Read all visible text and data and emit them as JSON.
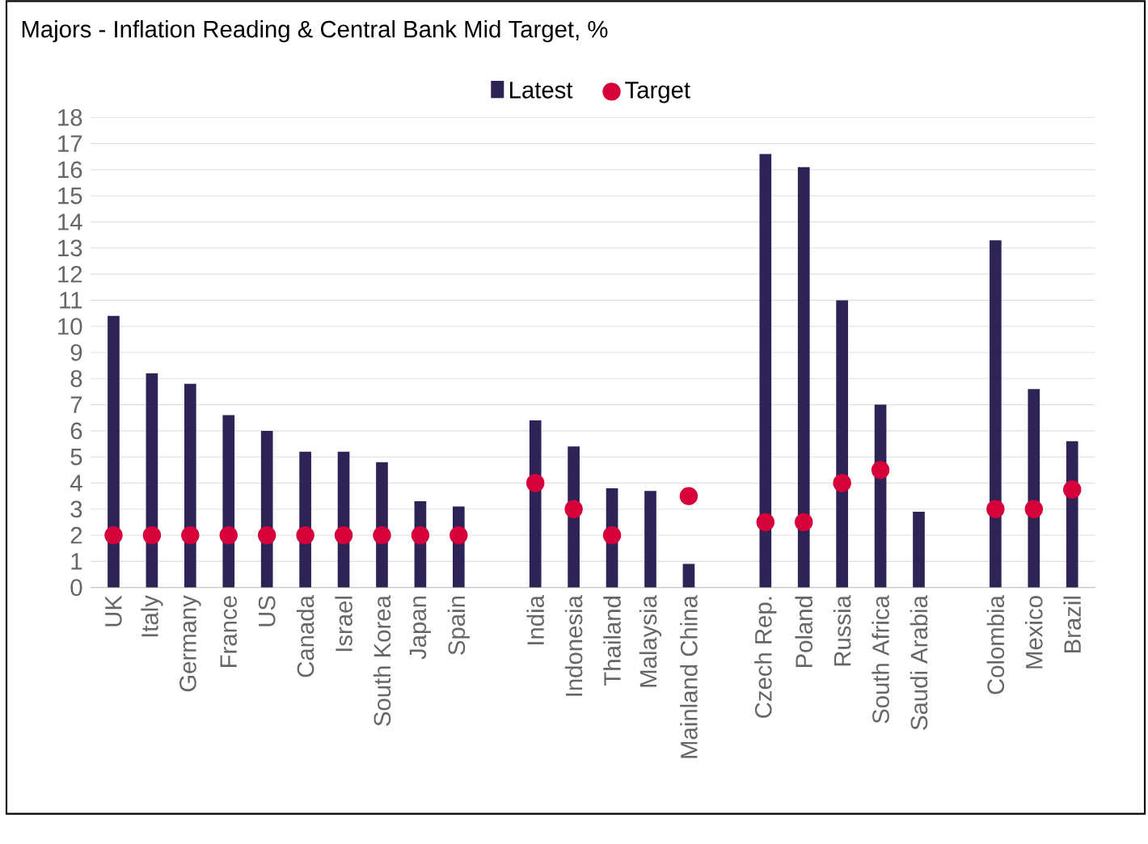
{
  "chart_data": {
    "type": "bar",
    "title": "Majors - Inflation Reading & Central Bank Mid Target, %",
    "categories": [
      "UK",
      "Italy",
      "Germany",
      "France",
      "US",
      "Canada",
      "Israel",
      "South Korea",
      "Japan",
      "Spain",
      null,
      "India",
      "Indonesia",
      "Thailand",
      "Malaysia",
      "Mainland China",
      null,
      "Czech Rep.",
      "Poland",
      "Russia",
      "South Africa",
      "Saudi Arabia",
      null,
      "Colombia",
      "Mexico",
      "Brazil"
    ],
    "series": [
      {
        "name": "Latest",
        "color": "#2e2355",
        "values": [
          10.4,
          8.2,
          7.8,
          6.6,
          6.0,
          5.2,
          5.2,
          4.8,
          3.3,
          3.1,
          null,
          6.4,
          5.4,
          3.8,
          3.7,
          0.9,
          null,
          16.6,
          16.1,
          11.0,
          7.0,
          2.9,
          null,
          13.3,
          7.6,
          5.6
        ]
      },
      {
        "name": "Target",
        "type": "scatter",
        "color": "#d6003a",
        "values": [
          2,
          2,
          2,
          2,
          2,
          2,
          2,
          2,
          2,
          2,
          null,
          4,
          3,
          2,
          null,
          3.5,
          null,
          2.5,
          2.5,
          4,
          4.5,
          null,
          null,
          3,
          3,
          3.75
        ]
      }
    ],
    "ylim": [
      0,
      18
    ],
    "yticks": [
      0,
      1,
      2,
      3,
      4,
      5,
      6,
      7,
      8,
      9,
      10,
      11,
      12,
      13,
      14,
      15,
      16,
      17,
      18
    ],
    "grid": "y",
    "legend": "top",
    "marker": "circle"
  }
}
